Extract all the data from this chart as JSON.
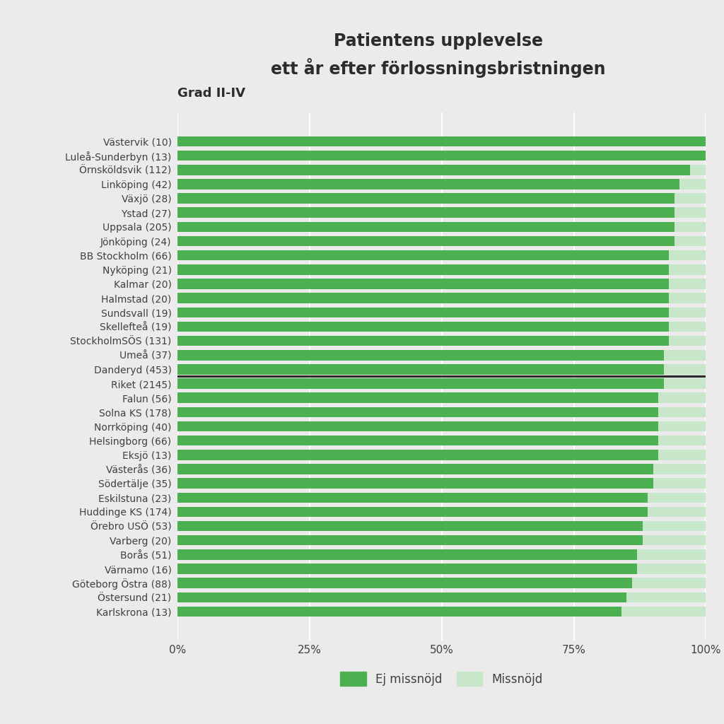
{
  "title_line1": "Patientens upplevelse",
  "title_line2": "ett år efter förlossningsbristningen",
  "subtitle": "Grad II-IV",
  "categories": [
    "Västervik (10)",
    "Luleå-Sunderbyn (13)",
    "Örnsköldsvik (112)",
    "Linköping (42)",
    "Växjö (28)",
    "Ystad (27)",
    "Uppsala (205)",
    "Jönköping (24)",
    "BB Stockholm (66)",
    "Nyköping (21)",
    "Kalmar (20)",
    "Halmstad (20)",
    "Sundsvall (19)",
    "Skellefteå (19)",
    "StockholmSÖS (131)",
    "Umeå (37)",
    "Danderyd (453)",
    "Riket (2145)",
    "Falun (56)",
    "Solna KS (178)",
    "Norrköping (40)",
    "Helsingborg (66)",
    "Eksjö (13)",
    "Västerås (36)",
    "Södertälje (35)",
    "Eskilstuna (23)",
    "Huddinge KS (174)",
    "Örebro USÖ (53)",
    "Varberg (20)",
    "Borås (51)",
    "Värnamo (16)",
    "Göteborg Östra (88)",
    "Östersund (21)",
    "Karlskrona (13)"
  ],
  "ej_misnojd": [
    1.0,
    1.0,
    0.97,
    0.95,
    0.94,
    0.94,
    0.94,
    0.94,
    0.93,
    0.93,
    0.93,
    0.93,
    0.93,
    0.93,
    0.93,
    0.92,
    0.92,
    0.92,
    0.91,
    0.91,
    0.91,
    0.91,
    0.91,
    0.9,
    0.9,
    0.89,
    0.89,
    0.88,
    0.88,
    0.87,
    0.87,
    0.86,
    0.85,
    0.84
  ],
  "misnojd": [
    0.0,
    0.0,
    0.03,
    0.05,
    0.06,
    0.06,
    0.06,
    0.06,
    0.07,
    0.07,
    0.07,
    0.07,
    0.07,
    0.07,
    0.07,
    0.08,
    0.08,
    0.08,
    0.09,
    0.09,
    0.09,
    0.09,
    0.09,
    0.1,
    0.1,
    0.11,
    0.11,
    0.12,
    0.12,
    0.13,
    0.13,
    0.14,
    0.15,
    0.16
  ],
  "riket_index": 17,
  "bar_color_green": "#4caf50",
  "bar_color_light": "#c8e6c9",
  "bg_color": "#ebebeb",
  "plot_bg_color": "#ebebeb",
  "title_color": "#2c2c2c",
  "label_color": "#404040",
  "legend_label_green": "Ej missnöjd",
  "legend_label_light": "Missnöjd"
}
